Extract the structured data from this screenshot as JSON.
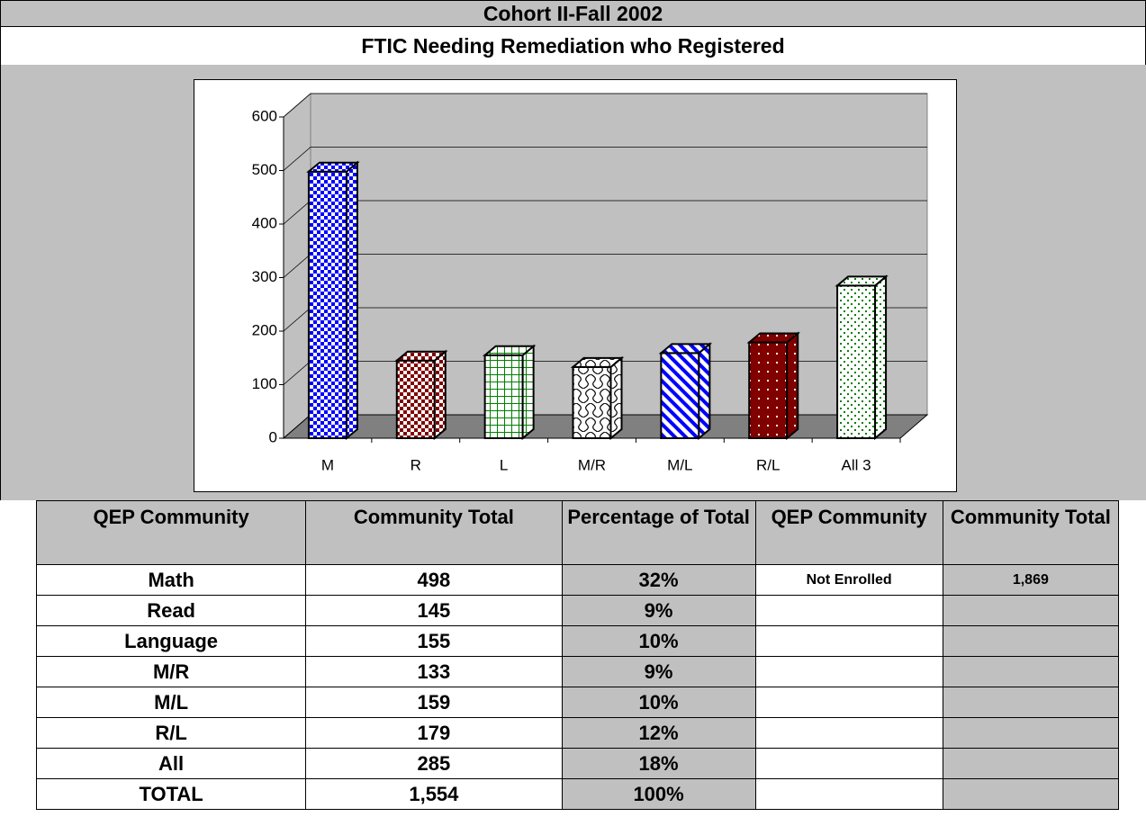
{
  "header": {
    "title": "Cohort II-Fall 2002",
    "subtitle": "FTIC Needing Remediation who Registered"
  },
  "chart_data": {
    "type": "bar3d",
    "categories": [
      "M",
      "R",
      "L",
      "M/R",
      "M/L",
      "R/L",
      "All 3"
    ],
    "values": [
      498,
      145,
      155,
      133,
      159,
      179,
      285
    ],
    "colors": [
      "#0000ff",
      "#800000",
      "#008000",
      "#000000",
      "#0000ff",
      "#800000",
      "#008000"
    ],
    "ylim": [
      0,
      600
    ],
    "yticks": [
      0,
      100,
      200,
      300,
      400,
      500,
      600
    ],
    "grid": true
  },
  "table": {
    "header": [
      "QEP Community",
      "Community Total",
      "Percentage of Total",
      "QEP Community",
      "Community Total"
    ],
    "rows": [
      [
        "Math",
        "498",
        "32%",
        "Not Enrolled",
        "1,869"
      ],
      [
        "Read",
        "145",
        "9%"
      ],
      [
        "Language",
        "155",
        "10%"
      ],
      [
        "M/R",
        "133",
        "9%"
      ],
      [
        "M/L",
        "159",
        "10%"
      ],
      [
        "R/L",
        "179",
        "12%"
      ],
      [
        "All",
        "285",
        "18%"
      ],
      [
        "TOTAL",
        "1,554",
        "100%"
      ]
    ]
  }
}
